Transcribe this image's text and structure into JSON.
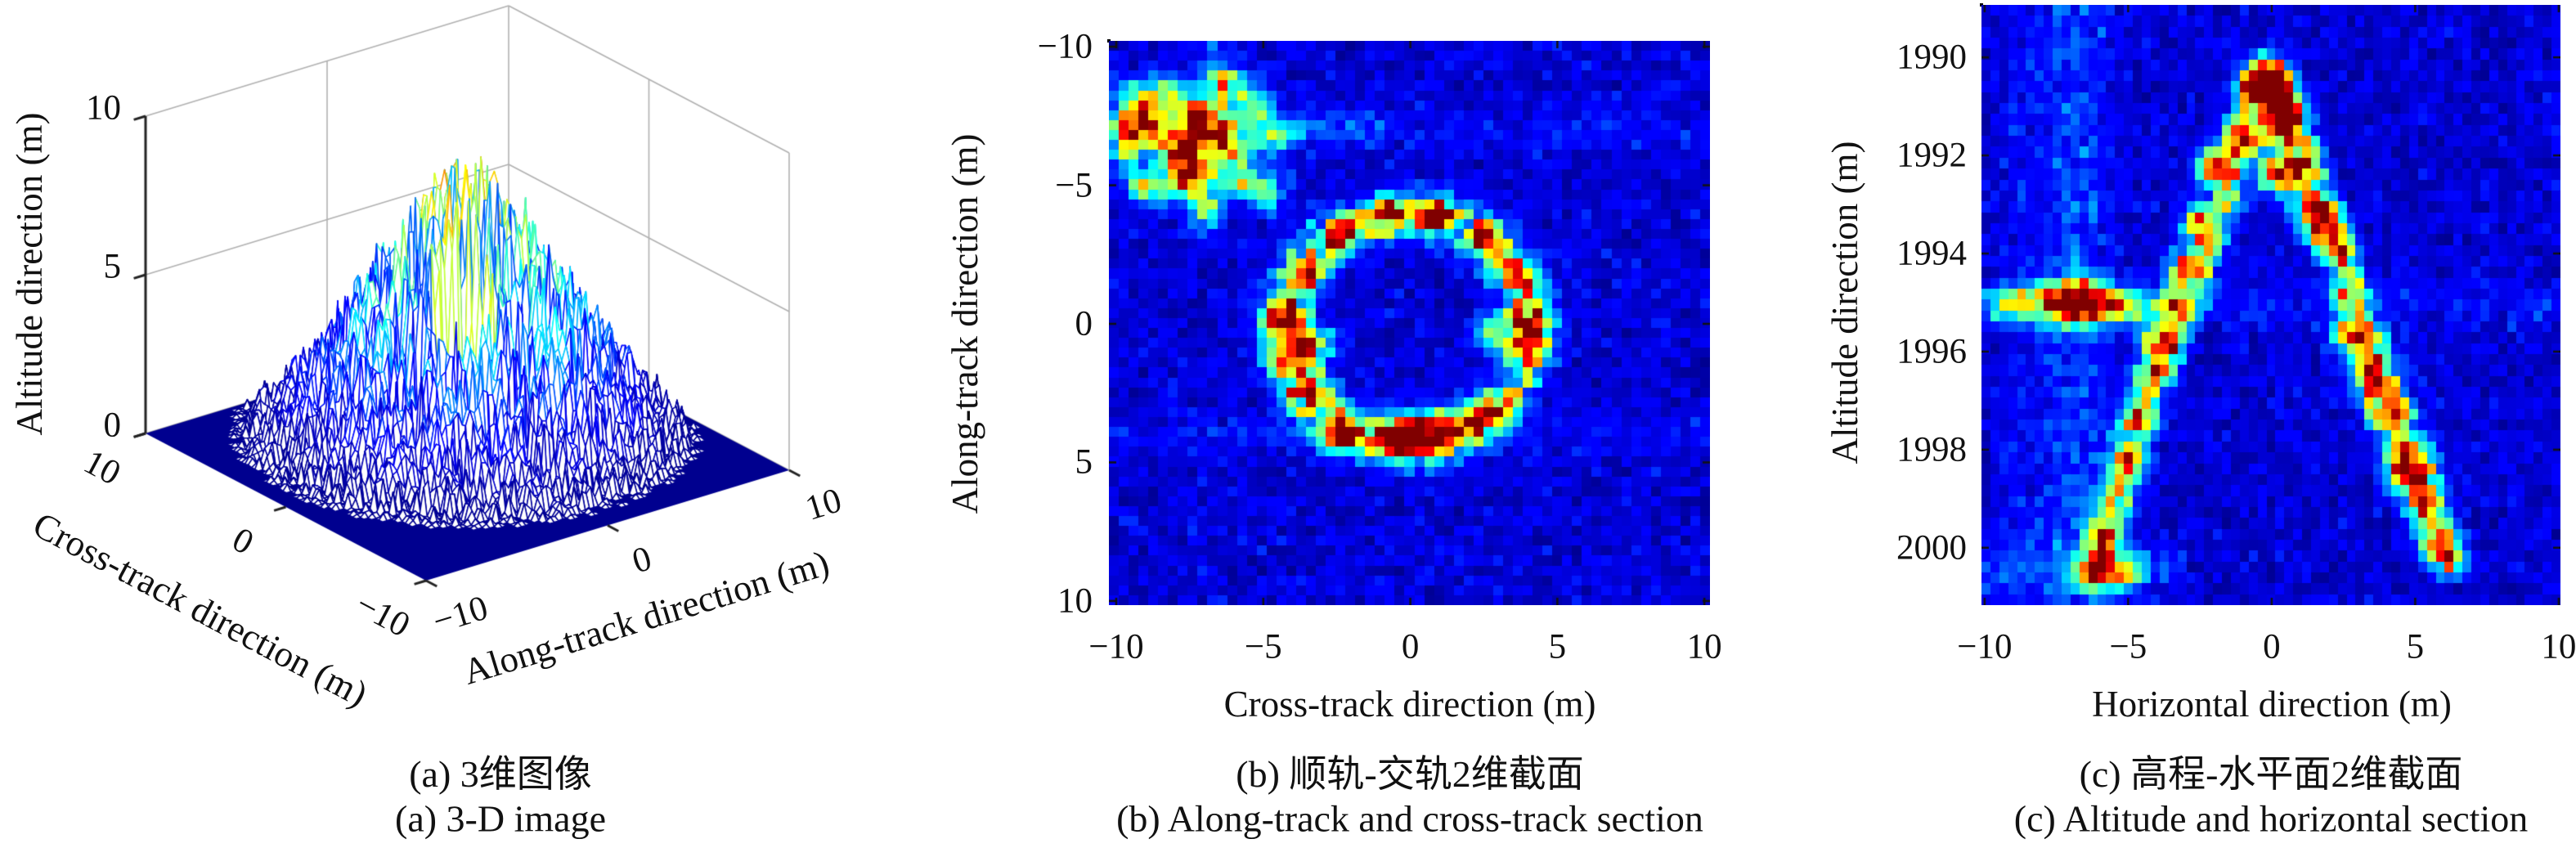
{
  "figure": {
    "background": "#ffffff",
    "text_color": "#111111",
    "colormap": "jet",
    "navy": "#00008F",
    "wall_grid_color": "#b0b0b0"
  },
  "chart_data": [
    {
      "id": "a",
      "type": "surface",
      "caption_cn": "(a) 3维图像",
      "caption_en": "(a) 3-D image",
      "xlabel": "Cross-track direction (m)",
      "ylabel": "Along-track direction (m)",
      "zlabel": "Altitude direction (m)",
      "xlim": [
        -10,
        10
      ],
      "ylim": [
        -10,
        10
      ],
      "zlim": [
        0,
        10
      ],
      "xticks": {
        "values": [
          10,
          0,
          -10
        ],
        "labels": [
          "10",
          "0",
          "−10"
        ]
      },
      "yticks": {
        "values": [
          -10,
          0,
          10
        ],
        "labels": [
          "−10",
          "0",
          "10"
        ]
      },
      "zticks": {
        "values": [
          10,
          5,
          0
        ],
        "labels": [
          "10",
          "5",
          "0"
        ]
      },
      "grid_on_walls": true,
      "surface": {
        "shape": "noisy-cone",
        "apex": [
          1.6,
          1.2
        ],
        "peak_height": 9.45,
        "base_radius": 9.0,
        "rim_noise_radius": 10.3,
        "grid_n": 84,
        "seed": 5,
        "floor_color": "#00008F",
        "face_color": "#ffffff",
        "green_blob": {
          "center": [
            -0.8,
            -0.8
          ],
          "radius": 1.3,
          "height": 2.5,
          "color_t": 0.57
        }
      }
    },
    {
      "id": "b",
      "type": "heatmap",
      "caption_cn": "(b) 顺轨-交轨2维截面",
      "caption_en": "(b) Along-track and cross-track section",
      "xlabel": "Cross-track direction (m)",
      "ylabel": "Along-track direction (m)",
      "xlim": [
        -10.25,
        10.19
      ],
      "ylim": [
        -10.21,
        10.15
      ],
      "y_down": true,
      "xticks": {
        "values": [
          -10,
          -5,
          0,
          5,
          10
        ],
        "labels": [
          "−10",
          "−5",
          "0",
          "5",
          "10"
        ]
      },
      "yticks": {
        "values": [
          -10,
          -5,
          0,
          5,
          10
        ],
        "labels": [
          "−10",
          "−5",
          "0",
          "5",
          "10"
        ]
      },
      "grid": [
        61,
        57
      ],
      "seed": 7,
      "yscale": 1,
      "features": {
        "noise": {
          "base": 0.04,
          "var": 0.1
        },
        "spots": [
          [
            -7.1,
            -7.2,
            1.0,
            0.55
          ],
          [
            -9.2,
            -7.2,
            0.88,
            0.5
          ],
          [
            -7.5,
            -5.45,
            0.85,
            0.5
          ],
          [
            -8.0,
            -6.4,
            0.7,
            0.45
          ],
          [
            -6.1,
            -6.5,
            0.68,
            0.45
          ],
          [
            -8.3,
            -8.3,
            0.55,
            0.45
          ],
          [
            -6.3,
            -8.6,
            0.6,
            0.45
          ],
          [
            -5.3,
            -7.9,
            0.5,
            0.4
          ],
          [
            -9.6,
            -6.4,
            0.45,
            0.4
          ],
          [
            -8.9,
            -4.9,
            0.5,
            0.4
          ],
          [
            -5.6,
            -5.2,
            0.45,
            0.4
          ],
          [
            -4.7,
            -6.8,
            0.4,
            0.4
          ],
          [
            -9.4,
            -8.2,
            0.38,
            0.4
          ],
          [
            -4.9,
            -4.6,
            0.32,
            0.4
          ],
          [
            -6.9,
            -4.2,
            0.35,
            0.4
          ]
        ],
        "ring": {
          "cx": -0.1,
          "cy": 0.2,
          "r": 4.15,
          "sigma": 0.55,
          "amp": 0.5
        },
        "ring_spots": [
          [
            -2.4,
            4.0,
            0.62,
            0.45
          ],
          [
            -0.45,
            4.05,
            0.75,
            0.45
          ],
          [
            0.25,
            3.9,
            0.68,
            0.45
          ],
          [
            1.05,
            3.75,
            0.5,
            0.4
          ],
          [
            2.15,
            3.6,
            0.45,
            0.4
          ],
          [
            -3.6,
            2.3,
            0.5,
            0.45
          ],
          [
            -4.1,
            1.0,
            0.6,
            0.45
          ],
          [
            -4.2,
            -0.3,
            0.62,
            0.45
          ],
          [
            -3.6,
            -1.8,
            0.55,
            0.4
          ],
          [
            -2.5,
            -3.2,
            0.48,
            0.4
          ],
          [
            -0.9,
            -3.9,
            0.5,
            0.4
          ],
          [
            0.8,
            -3.95,
            0.52,
            0.4
          ],
          [
            2.5,
            -3.2,
            0.48,
            0.4
          ],
          [
            3.8,
            -1.7,
            0.5,
            0.4
          ],
          [
            4.15,
            -0.1,
            0.52,
            0.45
          ],
          [
            3.95,
            0.9,
            0.55,
            0.45
          ],
          [
            3.0,
            3.0,
            0.45,
            0.4
          ],
          [
            2.8,
            0.3,
            0.35,
            0.45
          ],
          [
            -3.2,
            0.8,
            0.4,
            0.45
          ]
        ],
        "hbands": [
          [
            -7.1,
            -10.3,
            -1.0,
            0.13,
            0.5
          ],
          [
            -5.3,
            -10.3,
            -4.0,
            0.1,
            0.45
          ],
          [
            -7.0,
            -1.0,
            10.3,
            0.05,
            0.5
          ],
          [
            4.0,
            -10.3,
            10.3,
            0.045,
            0.5
          ]
        ],
        "vbands": [
          [
            -7.0,
            -10.3,
            -3.0,
            0.09,
            0.5
          ]
        ],
        "lines": []
      }
    },
    {
      "id": "c",
      "type": "heatmap",
      "caption_cn": "(c) 高程-水平面2维截面",
      "caption_en": "(c) Altitude and horizontal section",
      "xlabel": "Horizontal direction (m)",
      "ylabel": "Altitude direction (m)",
      "xlim": [
        -10.11,
        10.06
      ],
      "ylim": [
        1988.93,
        2001.17
      ],
      "y_down": true,
      "xticks": {
        "values": [
          -10,
          -5,
          0,
          5,
          10
        ],
        "labels": [
          "−10",
          "−5",
          "0",
          "5",
          "10"
        ]
      },
      "yticks": {
        "values": [
          1990,
          1992,
          1994,
          1996,
          1998,
          2000
        ],
        "labels": [
          "1990",
          "1992",
          "1994",
          "1996",
          "1998",
          "2000"
        ]
      },
      "grid": [
        65,
        55
      ],
      "seed": 13,
      "yscale": 1.75,
      "features": {
        "noise": {
          "base": 0.04,
          "var": 0.09
        },
        "spots": [
          [
            -6.85,
            1995.0,
            1.05,
            0.5
          ],
          [
            -6.0,
            1995.0,
            0.6,
            0.45
          ],
          [
            -7.7,
            1995.0,
            0.5,
            0.45
          ],
          [
            -5.3,
            1995.05,
            0.45,
            0.4
          ],
          [
            -8.55,
            1995.0,
            0.4,
            0.4
          ],
          [
            -9.35,
            1995.0,
            0.35,
            0.4
          ],
          [
            -4.55,
            1995.1,
            0.3,
            0.4
          ],
          [
            0.25,
            1990.9,
            1.0,
            0.42
          ],
          [
            -0.6,
            1990.6,
            0.75,
            0.42
          ],
          [
            0.6,
            1991.4,
            0.7,
            0.4
          ],
          [
            0.0,
            1990.3,
            0.6,
            0.4
          ],
          [
            1.0,
            1992.2,
            0.55,
            0.4
          ],
          [
            0.2,
            1992.4,
            0.5,
            0.4
          ],
          [
            1.7,
            1993.4,
            0.85,
            0.45
          ],
          [
            2.2,
            1993.9,
            0.6,
            0.4
          ],
          [
            2.6,
            1994.8,
            0.5,
            0.4
          ],
          [
            3.0,
            1995.7,
            0.55,
            0.4
          ],
          [
            3.6,
            1996.75,
            0.8,
            0.45
          ],
          [
            4.0,
            1997.3,
            0.55,
            0.4
          ],
          [
            4.4,
            1997.95,
            0.6,
            0.4
          ],
          [
            4.8,
            1998.45,
            0.92,
            0.5
          ],
          [
            5.2,
            1999.15,
            0.6,
            0.4
          ],
          [
            5.6,
            1999.75,
            0.62,
            0.4
          ],
          [
            5.95,
            2000.2,
            0.55,
            0.4
          ],
          [
            -1.15,
            1991.6,
            0.5,
            0.4
          ],
          [
            -2.0,
            1992.25,
            0.7,
            0.42
          ],
          [
            -2.6,
            1993.4,
            0.5,
            0.4
          ],
          [
            -3.1,
            1994.3,
            0.55,
            0.4
          ],
          [
            -3.6,
            1995.1,
            0.5,
            0.4
          ],
          [
            -4.0,
            1995.8,
            0.6,
            0.4
          ],
          [
            -4.4,
            1996.6,
            0.5,
            0.4
          ],
          [
            -4.8,
            1997.4,
            0.55,
            0.4
          ],
          [
            -5.2,
            1998.2,
            0.5,
            0.4
          ],
          [
            -5.6,
            1999.0,
            0.45,
            0.4
          ],
          [
            -5.9,
            1999.8,
            0.5,
            0.4
          ],
          [
            -6.2,
            2000.4,
            0.55,
            0.4
          ],
          [
            -4.9,
            2000.45,
            0.4,
            0.4
          ],
          [
            -5.4,
            2000.5,
            0.35,
            0.4
          ],
          [
            2.6,
            1995.6,
            0.4,
            0.4
          ],
          [
            1.3,
            1993.0,
            0.45,
            0.4
          ],
          [
            3.3,
            1996.3,
            0.5,
            0.4
          ]
        ],
        "ring": null,
        "ring_spots": [],
        "lines": [
          [
            -0.7,
            1990.8,
            -6.2,
            2000.6,
            0.3,
            0.38
          ],
          [
            -0.3,
            1991.2,
            -3.8,
            1996.4,
            0.22,
            0.35
          ],
          [
            0.3,
            1990.5,
            6.4,
            2000.3,
            0.32,
            0.38
          ],
          [
            -0.1,
            1990.3,
            0.4,
            1992.6,
            0.35,
            0.42
          ]
        ],
        "hbands": [
          [
            1995.0,
            -10.2,
            10.2,
            0.055,
            0.35
          ],
          [
            2000.4,
            -10.2,
            -3.0,
            0.08,
            0.4
          ]
        ],
        "vbands": [
          [
            -6.85,
            1989.0,
            2001.3,
            0.1,
            0.5
          ],
          [
            -5.9,
            1989.0,
            2001.3,
            0.05,
            0.45
          ],
          [
            -7.8,
            1989.0,
            2001.3,
            0.05,
            0.45
          ],
          [
            -9.0,
            1989.0,
            2001.3,
            0.04,
            0.45
          ]
        ]
      }
    }
  ]
}
